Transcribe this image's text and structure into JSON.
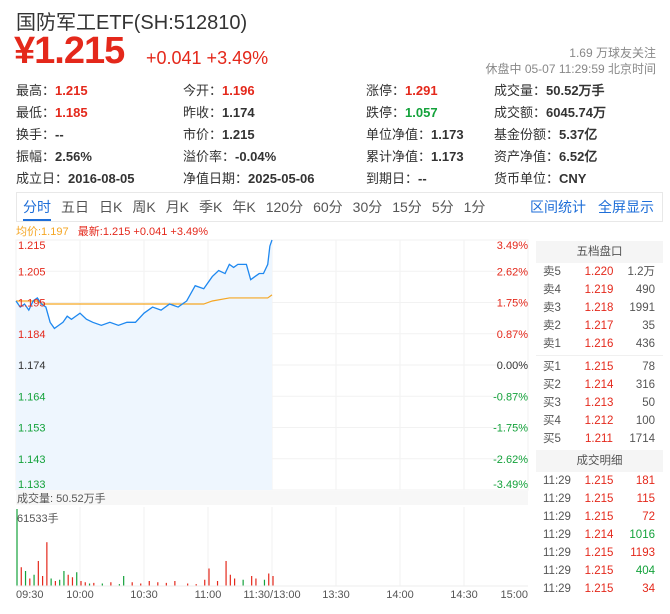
{
  "header": {
    "title": "国防军工ETF(SH:512810)",
    "price": "¥1.215",
    "change": "+0.041 +3.49%",
    "followers": "1.69 万球友关注",
    "status": "休盘中 05-07 11:29:59 北京时间"
  },
  "stats": [
    {
      "label": "最高：",
      "value": "1.215",
      "color": "red"
    },
    {
      "label": "今开：",
      "value": "1.196",
      "color": "red"
    },
    {
      "label": "涨停：",
      "value": "1.291",
      "color": "red"
    },
    {
      "label": "成交量：",
      "value": "50.52万手"
    },
    {
      "label": "最低：",
      "value": "1.185",
      "color": "red"
    },
    {
      "label": "昨收：",
      "value": "1.174"
    },
    {
      "label": "跌停：",
      "value": "1.057",
      "color": "green"
    },
    {
      "label": "成交额：",
      "value": "6045.74万"
    },
    {
      "label": "换手：",
      "value": "--"
    },
    {
      "label": "市价：",
      "value": "1.215"
    },
    {
      "label": "单位净值：",
      "value": "1.173"
    },
    {
      "label": "基金份额：",
      "value": "5.37亿"
    },
    {
      "label": "振幅：",
      "value": "2.56%"
    },
    {
      "label": "溢价率：",
      "value": "-0.04%"
    },
    {
      "label": "累计净值：",
      "value": "1.173"
    },
    {
      "label": "资产净值：",
      "value": "6.52亿"
    },
    {
      "label": "成立日：",
      "value": "2016-08-05"
    },
    {
      "label": "净值日期：",
      "value": "2025-05-06"
    },
    {
      "label": "到期日：",
      "value": "--"
    },
    {
      "label": "货币单位：",
      "value": "CNY"
    }
  ],
  "tabs": [
    "分时",
    "五日",
    "日K",
    "周K",
    "月K",
    "季K",
    "年K",
    "120分",
    "60分",
    "30分",
    "15分",
    "5分",
    "1分"
  ],
  "active_tab": "分时",
  "tab_actions": [
    "区间统计",
    "全屏显示"
  ],
  "legend": {
    "avg": "均价:1.197",
    "latest": "最新:1.215 +0.041 +3.49%"
  },
  "colors": {
    "up": "#e4281b",
    "down": "#14a23b",
    "price_line": "#1e88f0",
    "avg_line": "#f5a623"
  },
  "order_book": {
    "title": "五档盘口",
    "asks": [
      [
        "卖5",
        "1.220",
        "1.2万"
      ],
      [
        "卖4",
        "1.219",
        "490"
      ],
      [
        "卖3",
        "1.218",
        "1991"
      ],
      [
        "卖2",
        "1.217",
        "35"
      ],
      [
        "卖1",
        "1.216",
        "436"
      ]
    ],
    "bids": [
      [
        "买1",
        "1.215",
        "78"
      ],
      [
        "买2",
        "1.214",
        "316"
      ],
      [
        "买3",
        "1.213",
        "50"
      ],
      [
        "买4",
        "1.212",
        "100"
      ],
      [
        "买5",
        "1.211",
        "1714"
      ]
    ]
  },
  "trades": {
    "title": "成交明细",
    "rows": [
      [
        "11:29",
        "1.215",
        "181",
        "red"
      ],
      [
        "11:29",
        "1.215",
        "115",
        "red"
      ],
      [
        "11:29",
        "1.215",
        "72",
        "red"
      ],
      [
        "11:29",
        "1.214",
        "1016",
        "green"
      ],
      [
        "11:29",
        "1.215",
        "1193",
        "red"
      ],
      [
        "11:29",
        "1.215",
        "404",
        "green"
      ],
      [
        "11:29",
        "1.215",
        "34",
        "red"
      ]
    ]
  },
  "chart_data": {
    "type": "line",
    "y_ticks": [
      "1.215",
      "1.205",
      "1.195",
      "1.184",
      "1.174",
      "1.164",
      "1.153",
      "1.143",
      "1.133"
    ],
    "pct_ticks": [
      "3.49%",
      "2.62%",
      "1.75%",
      "0.87%",
      "0.00%",
      "-0.87%",
      "-1.75%",
      "-2.62%",
      "-3.49%"
    ],
    "ylim": [
      1.133,
      1.215
    ],
    "prev_close": 1.174,
    "x_ticks": [
      "09:30",
      "10:00",
      "10:30",
      "11:00",
      "11:30/13:00",
      "13:30",
      "14:00",
      "14:30",
      "15:00"
    ],
    "price": {
      "minutes": [
        0,
        2,
        4,
        6,
        8,
        10,
        12,
        14,
        16,
        18,
        20,
        22,
        24,
        26,
        28,
        30,
        33,
        36,
        40,
        44,
        48,
        52,
        56,
        60,
        64,
        68,
        72,
        76,
        80,
        84,
        88,
        92,
        95,
        98,
        100,
        102,
        104,
        106,
        108,
        110,
        112,
        114,
        116,
        118,
        119,
        120
      ],
      "values": [
        1.195,
        1.193,
        1.194,
        1.192,
        1.195,
        1.196,
        1.194,
        1.193,
        1.188,
        1.186,
        1.187,
        1.188,
        1.19,
        1.189,
        1.19,
        1.191,
        1.189,
        1.188,
        1.187,
        1.188,
        1.187,
        1.188,
        1.188,
        1.191,
        1.193,
        1.192,
        1.194,
        1.193,
        1.195,
        1.2,
        1.199,
        1.203,
        1.205,
        1.204,
        1.207,
        1.206,
        1.207,
        1.207,
        1.207,
        1.202,
        1.203,
        1.204,
        1.204,
        1.207,
        1.213,
        1.215
      ]
    },
    "avg": {
      "minutes": [
        0,
        10,
        12,
        30,
        40,
        70,
        88,
        92,
        100,
        110,
        118,
        120
      ],
      "values": [
        1.195,
        1.195,
        1.194,
        1.194,
        1.194,
        1.194,
        1.194,
        1.195,
        1.196,
        1.196,
        1.196,
        1.197
      ]
    },
    "volume_label": "成交量: 50.52万手",
    "volume_max_label": "61533手",
    "volume": {
      "minutes": [
        0,
        2,
        4,
        6,
        8,
        10,
        12,
        14,
        16,
        18,
        20,
        22,
        24,
        26,
        28,
        30,
        32,
        34,
        36,
        40,
        44,
        48,
        50,
        54,
        58,
        62,
        66,
        70,
        74,
        80,
        84,
        88,
        90,
        94,
        98,
        100,
        102,
        106,
        110,
        112,
        116,
        118,
        120
      ],
      "values": [
        61533,
        15000,
        12000,
        6000,
        9000,
        20000,
        8000,
        35000,
        6000,
        4000,
        5000,
        12000,
        9000,
        7000,
        11000,
        4000,
        3000,
        2000,
        2500,
        2000,
        3000,
        1500,
        8000,
        3000,
        2000,
        4000,
        3000,
        2500,
        4000,
        2000,
        1500,
        5000,
        14000,
        4000,
        20000,
        9000,
        6000,
        5000,
        8000,
        6000,
        5000,
        10000,
        8000
      ],
      "colors": [
        "green",
        "red",
        "green",
        "red",
        "green",
        "red",
        "red",
        "red",
        "green",
        "red",
        "green",
        "green",
        "red",
        "red",
        "green",
        "red",
        "red",
        "green",
        "red",
        "green",
        "red",
        "green",
        "green",
        "red",
        "red",
        "red",
        "red",
        "red",
        "red",
        "red",
        "red",
        "red",
        "red",
        "red",
        "red",
        "red",
        "red",
        "green",
        "red",
        "red",
        "green",
        "red",
        "red"
      ]
    }
  }
}
